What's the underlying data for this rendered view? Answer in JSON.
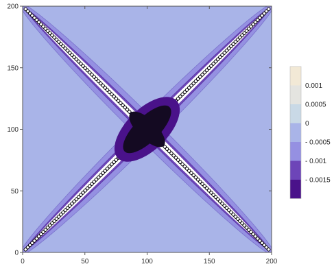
{
  "chart_data": {
    "type": "heatmap",
    "title": "",
    "xlabel": "",
    "ylabel": "",
    "xlim": [
      0,
      200
    ],
    "ylim": [
      0,
      200
    ],
    "x_ticks": [
      {
        "value": 0,
        "label": "0"
      },
      {
        "value": 50,
        "label": "50"
      },
      {
        "value": 100,
        "label": "100"
      },
      {
        "value": 150,
        "label": "150"
      },
      {
        "value": 200,
        "label": "200"
      }
    ],
    "y_ticks": [
      {
        "value": 0,
        "label": "0"
      },
      {
        "value": 50,
        "label": "50"
      },
      {
        "value": 100,
        "label": "100"
      },
      {
        "value": 150,
        "label": "150"
      },
      {
        "value": 200,
        "label": "200"
      }
    ],
    "background_level": 0,
    "bands": [
      {
        "level": 0.0015,
        "color": "#f2e9d6"
      },
      {
        "level": 0.001,
        "color": "#e4e4e0"
      },
      {
        "level": 0.0005,
        "color": "#c9d9e6"
      },
      {
        "level": 0,
        "color": "#a9b4e8"
      },
      {
        "level": -0.0005,
        "color": "#9590e2"
      },
      {
        "level": -0.001,
        "color": "#6d45b8"
      },
      {
        "level": -0.0015,
        "color": "#4a128a"
      }
    ],
    "legend": {
      "placement": "right",
      "labels": [
        "0.001",
        "0.0005",
        "0",
        "- 0.0005",
        "- 0.001",
        "- 0.0015"
      ]
    },
    "structure": {
      "diagonals": [
        {
          "from": [
            0,
            0
          ],
          "to": [
            200,
            200
          ]
        },
        {
          "from": [
            0,
            200
          ],
          "to": [
            200,
            0
          ]
        }
      ],
      "center": [
        100,
        100
      ]
    },
    "grid": false
  }
}
